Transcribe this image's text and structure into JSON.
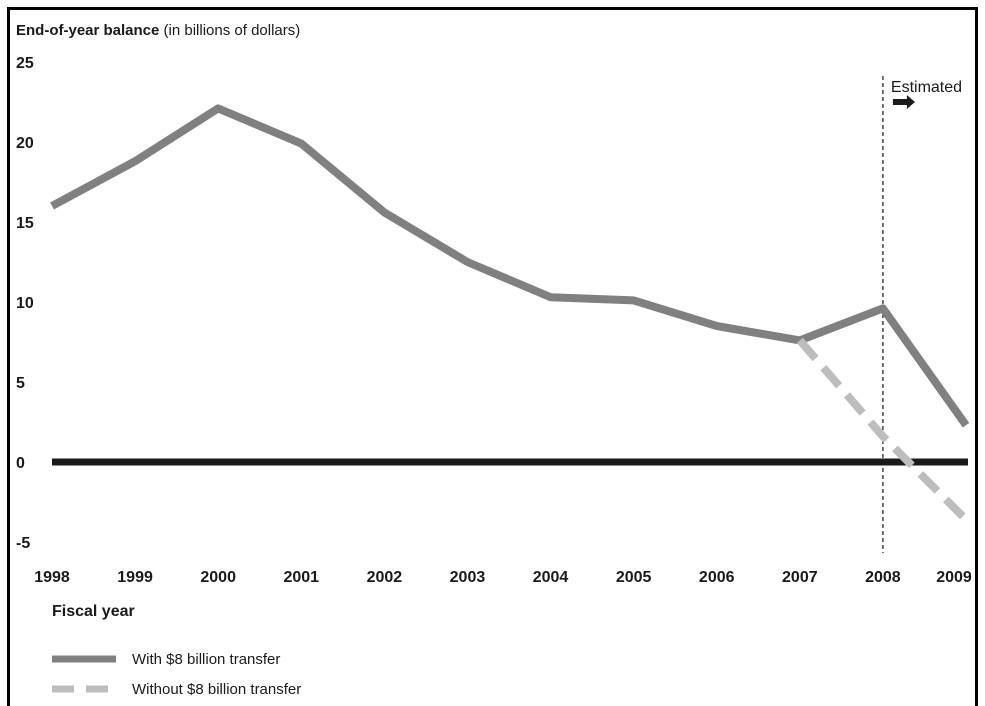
{
  "chart_data": {
    "type": "line",
    "title_bold": "End-of-year balance",
    "title_unit": " (in billions of dollars)",
    "xlabel": "Fiscal year",
    "x": [
      "1998",
      "1999",
      "2000",
      "2001",
      "2002",
      "2003",
      "2004",
      "2005",
      "2006",
      "2007",
      "2008",
      "2009"
    ],
    "ylim": [
      -5,
      25
    ],
    "yticks": [
      -5,
      0,
      5,
      10,
      15,
      20,
      25
    ],
    "series": [
      {
        "name": "With $8 billion transfer",
        "color": "#808080",
        "style": "solid",
        "values": [
          16.0,
          18.8,
          22.1,
          19.9,
          15.6,
          12.5,
          10.3,
          10.1,
          8.5,
          7.6,
          9.6,
          2.3
        ]
      },
      {
        "name": "Without $8 billion transfer",
        "color": "#bdbdbd",
        "style": "dashed",
        "values": [
          null,
          null,
          null,
          null,
          null,
          null,
          null,
          null,
          null,
          7.6,
          1.6,
          -3.6
        ]
      }
    ],
    "zero_line": true,
    "annotation": {
      "label": "Estimated",
      "at_x": "2008",
      "icon": "right-arrow-icon"
    }
  }
}
